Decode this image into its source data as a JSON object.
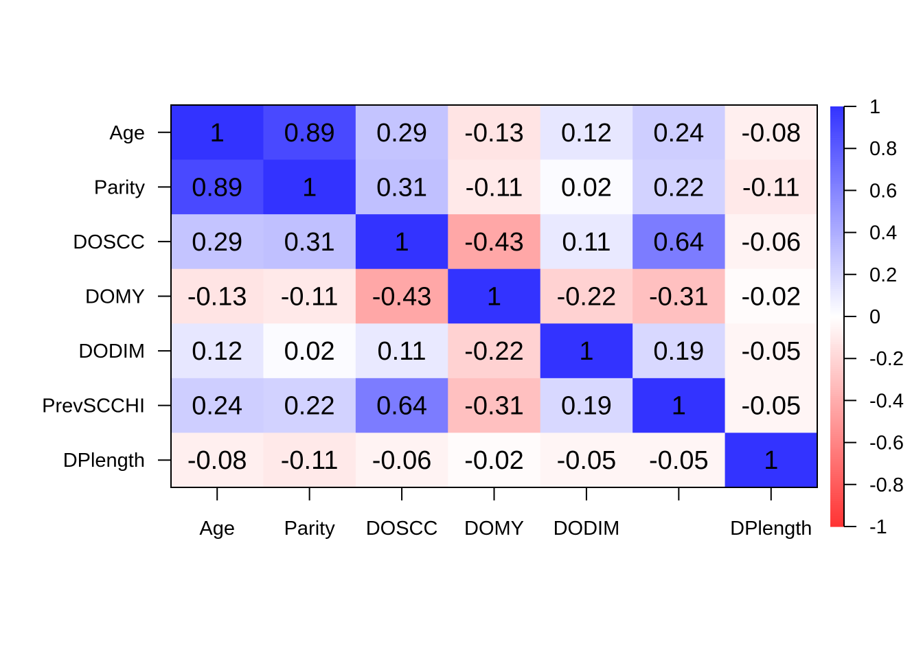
{
  "chart_data": {
    "type": "heatmap",
    "row_labels": [
      "Age",
      "Parity",
      "DOSCC",
      "DOMY",
      "DODIM",
      "PrevSCCHI",
      "DPlength"
    ],
    "col_labels": [
      "Age",
      "Parity",
      "DOSCC",
      "DOMY",
      "DODIM",
      "",
      "DPlength"
    ],
    "values": [
      [
        1,
        0.89,
        0.29,
        -0.13,
        0.12,
        0.24,
        -0.08
      ],
      [
        0.89,
        1,
        0.31,
        -0.11,
        0.02,
        0.22,
        -0.11
      ],
      [
        0.29,
        0.31,
        1,
        -0.43,
        0.11,
        0.64,
        -0.06
      ],
      [
        -0.13,
        -0.11,
        -0.43,
        1,
        -0.22,
        -0.31,
        -0.02
      ],
      [
        0.12,
        0.02,
        0.11,
        -0.22,
        1,
        0.19,
        -0.05
      ],
      [
        0.24,
        0.22,
        0.64,
        -0.31,
        0.19,
        1,
        -0.05
      ],
      [
        -0.08,
        -0.11,
        -0.06,
        -0.02,
        -0.05,
        -0.05,
        1
      ]
    ],
    "value_labels": [
      [
        "1",
        "0.89",
        "0.29",
        "-0.13",
        "0.12",
        "0.24",
        "-0.08"
      ],
      [
        "0.89",
        "1",
        "0.31",
        "-0.11",
        "0.02",
        "0.22",
        "-0.11"
      ],
      [
        "0.29",
        "0.31",
        "1",
        "-0.43",
        "0.11",
        "0.64",
        "-0.06"
      ],
      [
        "-0.13",
        "-0.11",
        "-0.43",
        "1",
        "-0.22",
        "-0.31",
        "-0.02"
      ],
      [
        "0.12",
        "0.02",
        "0.11",
        "-0.22",
        "1",
        "0.19",
        "-0.05"
      ],
      [
        "0.24",
        "0.22",
        "0.64",
        "-0.31",
        "0.19",
        "1",
        "-0.05"
      ],
      [
        "-0.08",
        "-0.11",
        "-0.06",
        "-0.02",
        "-0.05",
        "-0.05",
        "1"
      ]
    ],
    "color_scale": {
      "range": [
        -1,
        1
      ],
      "low_color": "#ff3333",
      "mid_color": "#ffffff",
      "high_color": "#3333ff",
      "ticks": [
        1,
        0.8,
        0.6,
        0.4,
        0.2,
        0,
        -0.2,
        -0.4,
        -0.6,
        -0.8,
        -1
      ],
      "tick_labels": [
        "1",
        "0.8",
        "0.6",
        "0.4",
        "0.2",
        "0",
        "-0.2",
        "-0.4",
        "-0.6",
        "-0.8",
        "-1"
      ]
    },
    "legend_position": "right"
  }
}
